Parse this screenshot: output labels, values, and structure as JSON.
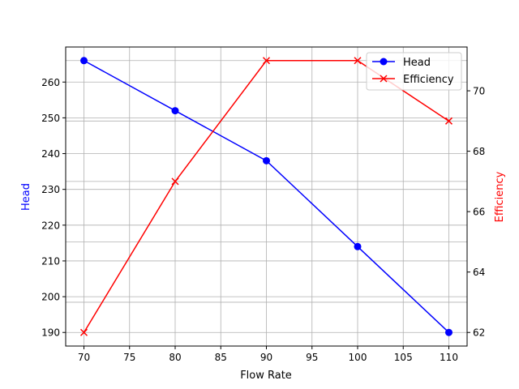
{
  "chart_data": {
    "type": "line",
    "title": "",
    "xlabel": "Flow Rate",
    "x": [
      70,
      80,
      90,
      100,
      110
    ],
    "xticks": [
      70,
      75,
      80,
      85,
      90,
      95,
      100,
      105,
      110
    ],
    "xlim": [
      68,
      112
    ],
    "series": [
      {
        "name": "Head",
        "axis": "left",
        "color": "#0000ff",
        "marker": "circle",
        "values": [
          266,
          252,
          238,
          214,
          190
        ]
      },
      {
        "name": "Efficiency",
        "axis": "right",
        "color": "#ff0000",
        "marker": "x",
        "values": [
          62,
          67,
          71,
          71,
          69
        ]
      }
    ],
    "left_axis": {
      "label": "Head",
      "color": "#0000ff",
      "ticks": [
        190,
        200,
        210,
        220,
        230,
        240,
        250,
        260
      ],
      "ylim": [
        186.2,
        269.8
      ]
    },
    "right_axis": {
      "label": "Efficiency",
      "color": "#ff0000",
      "ticks": [
        62,
        64,
        66,
        68,
        70
      ],
      "ylim": [
        61.55,
        71.45
      ]
    },
    "grid": true,
    "legend": {
      "position": "upper right",
      "entries": [
        "Head",
        "Efficiency"
      ]
    }
  }
}
